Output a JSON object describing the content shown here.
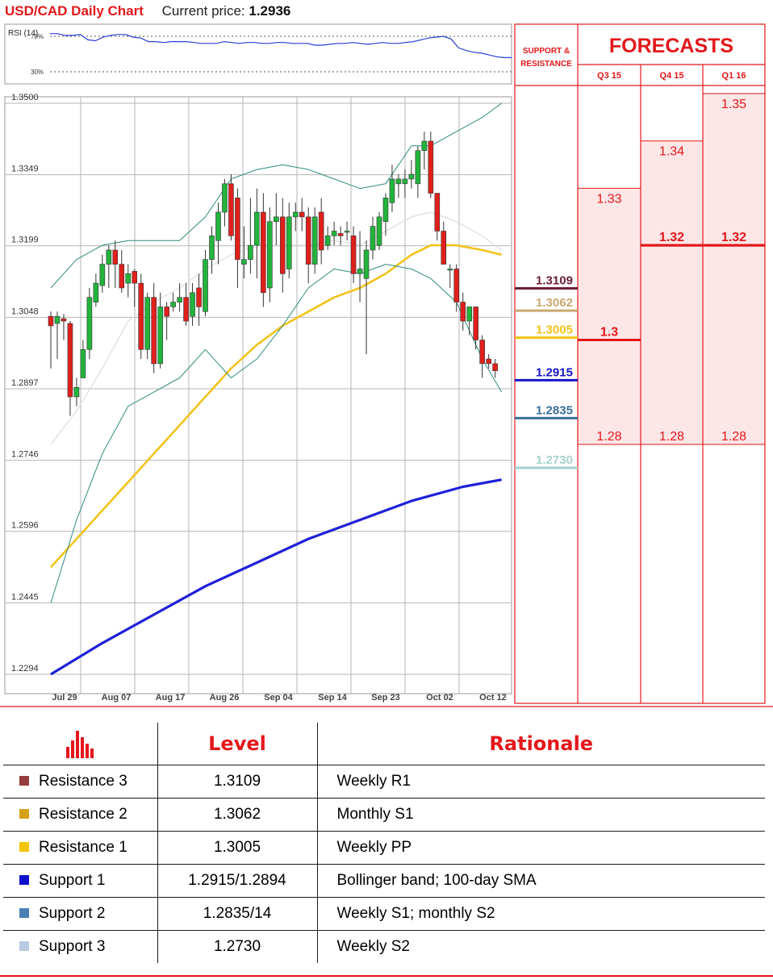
{
  "header": {
    "title": "USD/CAD Daily Chart",
    "current_price_label": "Current price:",
    "current_price": "1.2936"
  },
  "rsi_panel": {
    "label": "RSI (14)",
    "level_70": "70%",
    "level_30": "30%",
    "values": [
      73,
      73,
      71,
      71,
      72,
      66,
      65,
      69,
      71,
      72,
      72,
      69,
      68,
      64,
      64,
      63,
      64,
      64,
      64,
      63,
      62,
      62,
      62,
      64,
      63,
      62,
      63,
      63,
      62,
      62,
      63,
      63,
      62,
      62,
      62,
      60,
      60,
      61,
      62,
      62,
      63,
      62,
      61,
      62,
      63,
      62,
      62,
      63,
      64,
      66,
      68,
      69,
      70,
      67,
      57,
      54,
      52,
      51,
      49,
      47,
      46,
      46
    ],
    "colors": {
      "line": "#2a3fd6",
      "dotted": "#555555"
    }
  },
  "chart_data": {
    "type": "candlestick",
    "title": "USD/CAD Daily Chart",
    "y_ticks": [
      "1.3500",
      "1.3349",
      "1.3199",
      "1.3048",
      "1.2897",
      "1.2746",
      "1.2596",
      "1.2445",
      "1.2294"
    ],
    "x_ticks": [
      "Jul 29",
      "Aug 07",
      "Aug 17",
      "Aug 26",
      "Sep 04",
      "Sep 14",
      "Sep 23",
      "Oct 02",
      "Oct 12"
    ],
    "ylim": [
      1.2294,
      1.35
    ],
    "grid": true,
    "candles": [
      {
        "o": 1.305,
        "h": 1.306,
        "l": 1.294,
        "c": 1.303
      },
      {
        "o": 1.3035,
        "h": 1.306,
        "l": 1.296,
        "c": 1.305
      },
      {
        "o": 1.3045,
        "h": 1.3055,
        "l": 1.3,
        "c": 1.304
      },
      {
        "o": 1.3035,
        "h": 1.304,
        "l": 1.284,
        "c": 1.288
      },
      {
        "o": 1.288,
        "h": 1.292,
        "l": 1.286,
        "c": 1.29
      },
      {
        "o": 1.292,
        "h": 1.3,
        "l": 1.292,
        "c": 1.298
      },
      {
        "o": 1.298,
        "h": 1.311,
        "l": 1.296,
        "c": 1.309
      },
      {
        "o": 1.308,
        "h": 1.314,
        "l": 1.307,
        "c": 1.312
      },
      {
        "o": 1.3115,
        "h": 1.318,
        "l": 1.31,
        "c": 1.316
      },
      {
        "o": 1.316,
        "h": 1.32,
        "l": 1.311,
        "c": 1.319
      },
      {
        "o": 1.319,
        "h": 1.321,
        "l": 1.311,
        "c": 1.316
      },
      {
        "o": 1.316,
        "h": 1.319,
        "l": 1.31,
        "c": 1.311
      },
      {
        "o": 1.312,
        "h": 1.316,
        "l": 1.309,
        "c": 1.314
      },
      {
        "o": 1.3145,
        "h": 1.315,
        "l": 1.307,
        "c": 1.312
      },
      {
        "o": 1.312,
        "h": 1.314,
        "l": 1.296,
        "c": 1.298
      },
      {
        "o": 1.298,
        "h": 1.31,
        "l": 1.296,
        "c": 1.309
      },
      {
        "o": 1.309,
        "h": 1.312,
        "l": 1.293,
        "c": 1.295
      },
      {
        "o": 1.295,
        "h": 1.31,
        "l": 1.294,
        "c": 1.307
      },
      {
        "o": 1.307,
        "h": 1.308,
        "l": 1.3,
        "c": 1.305
      },
      {
        "o": 1.307,
        "h": 1.31,
        "l": 1.306,
        "c": 1.308
      },
      {
        "o": 1.308,
        "h": 1.312,
        "l": 1.306,
        "c": 1.309
      },
      {
        "o": 1.309,
        "h": 1.312,
        "l": 1.303,
        "c": 1.304
      },
      {
        "o": 1.305,
        "h": 1.312,
        "l": 1.303,
        "c": 1.31
      },
      {
        "o": 1.311,
        "h": 1.314,
        "l": 1.303,
        "c": 1.307
      },
      {
        "o": 1.306,
        "h": 1.319,
        "l": 1.305,
        "c": 1.317
      },
      {
        "o": 1.317,
        "h": 1.324,
        "l": 1.314,
        "c": 1.322
      },
      {
        "o": 1.321,
        "h": 1.329,
        "l": 1.316,
        "c": 1.327
      },
      {
        "o": 1.327,
        "h": 1.334,
        "l": 1.324,
        "c": 1.333
      },
      {
        "o": 1.333,
        "h": 1.335,
        "l": 1.321,
        "c": 1.322
      },
      {
        "o": 1.33,
        "h": 1.332,
        "l": 1.311,
        "c": 1.317
      },
      {
        "o": 1.316,
        "h": 1.324,
        "l": 1.313,
        "c": 1.317
      },
      {
        "o": 1.317,
        "h": 1.33,
        "l": 1.314,
        "c": 1.32
      },
      {
        "o": 1.32,
        "h": 1.332,
        "l": 1.313,
        "c": 1.327
      },
      {
        "o": 1.327,
        "h": 1.331,
        "l": 1.307,
        "c": 1.31
      },
      {
        "o": 1.311,
        "h": 1.328,
        "l": 1.308,
        "c": 1.325
      },
      {
        "o": 1.325,
        "h": 1.331,
        "l": 1.32,
        "c": 1.326
      },
      {
        "o": 1.326,
        "h": 1.33,
        "l": 1.31,
        "c": 1.314
      },
      {
        "o": 1.315,
        "h": 1.329,
        "l": 1.313,
        "c": 1.326
      },
      {
        "o": 1.326,
        "h": 1.329,
        "l": 1.323,
        "c": 1.327
      },
      {
        "o": 1.327,
        "h": 1.33,
        "l": 1.323,
        "c": 1.326
      },
      {
        "o": 1.326,
        "h": 1.328,
        "l": 1.312,
        "c": 1.316
      },
      {
        "o": 1.316,
        "h": 1.328,
        "l": 1.314,
        "c": 1.326
      },
      {
        "o": 1.327,
        "h": 1.33,
        "l": 1.316,
        "c": 1.319
      },
      {
        "o": 1.32,
        "h": 1.324,
        "l": 1.319,
        "c": 1.322
      },
      {
        "o": 1.322,
        "h": 1.325,
        "l": 1.32,
        "c": 1.323
      },
      {
        "o": 1.3225,
        "h": 1.324,
        "l": 1.32,
        "c": 1.322
      },
      {
        "o": 1.323,
        "h": 1.325,
        "l": 1.321,
        "c": 1.323
      },
      {
        "o": 1.322,
        "h": 1.324,
        "l": 1.312,
        "c": 1.314
      },
      {
        "o": 1.314,
        "h": 1.323,
        "l": 1.308,
        "c": 1.315
      },
      {
        "o": 1.313,
        "h": 1.321,
        "l": 1.297,
        "c": 1.319
      },
      {
        "o": 1.319,
        "h": 1.326,
        "l": 1.317,
        "c": 1.324
      },
      {
        "o": 1.32,
        "h": 1.327,
        "l": 1.319,
        "c": 1.326
      },
      {
        "o": 1.325,
        "h": 1.331,
        "l": 1.322,
        "c": 1.33
      },
      {
        "o": 1.329,
        "h": 1.337,
        "l": 1.327,
        "c": 1.334
      },
      {
        "o": 1.333,
        "h": 1.335,
        "l": 1.33,
        "c": 1.334
      },
      {
        "o": 1.333,
        "h": 1.336,
        "l": 1.33,
        "c": 1.334
      },
      {
        "o": 1.334,
        "h": 1.338,
        "l": 1.332,
        "c": 1.335
      },
      {
        "o": 1.333,
        "h": 1.341,
        "l": 1.33,
        "c": 1.34
      },
      {
        "o": 1.34,
        "h": 1.344,
        "l": 1.336,
        "c": 1.342
      },
      {
        "o": 1.342,
        "h": 1.344,
        "l": 1.33,
        "c": 1.331
      },
      {
        "o": 1.331,
        "h": 1.331,
        "l": 1.321,
        "c": 1.323
      },
      {
        "o": 1.323,
        "h": 1.325,
        "l": 1.316,
        "c": 1.316
      },
      {
        "o": 1.315,
        "h": 1.316,
        "l": 1.311,
        "c": 1.315
      },
      {
        "o": 1.315,
        "h": 1.316,
        "l": 1.306,
        "c": 1.308
      },
      {
        "o": 1.308,
        "h": 1.31,
        "l": 1.302,
        "c": 1.304
      },
      {
        "o": 1.304,
        "h": 1.307,
        "l": 1.301,
        "c": 1.307
      },
      {
        "o": 1.307,
        "h": 1.307,
        "l": 1.298,
        "c": 1.3
      },
      {
        "o": 1.3,
        "h": 1.301,
        "l": 1.292,
        "c": 1.295
      },
      {
        "o": 1.296,
        "h": 1.297,
        "l": 1.294,
        "c": 1.295
      },
      {
        "o": 1.295,
        "h": 1.296,
        "l": 1.292,
        "c": 1.2935
      }
    ],
    "series": [
      {
        "name": "SMA 50",
        "color": "#f2c31a",
        "values": [
          [
            0,
            1.252
          ],
          [
            4,
            1.258
          ],
          [
            8,
            1.264
          ],
          [
            12,
            1.27
          ],
          [
            16,
            1.276
          ],
          [
            20,
            1.282
          ],
          [
            24,
            1.288
          ],
          [
            28,
            1.294
          ],
          [
            32,
            1.299
          ],
          [
            36,
            1.303
          ],
          [
            40,
            1.306
          ],
          [
            44,
            1.309
          ],
          [
            48,
            1.311
          ],
          [
            52,
            1.314
          ],
          [
            56,
            1.318
          ],
          [
            59,
            1.32
          ],
          [
            63,
            1.32
          ],
          [
            67,
            1.319
          ],
          [
            70,
            1.318
          ]
        ]
      },
      {
        "name": "SMA 100",
        "color": "#2020d8",
        "values": [
          [
            0,
            1.2294
          ],
          [
            8,
            1.236
          ],
          [
            16,
            1.242
          ],
          [
            24,
            1.248
          ],
          [
            32,
            1.253
          ],
          [
            40,
            1.258
          ],
          [
            48,
            1.262
          ],
          [
            56,
            1.266
          ],
          [
            64,
            1.269
          ],
          [
            70,
            1.2705
          ]
        ]
      },
      {
        "name": "SMA 20",
        "color": "#dcdcdc",
        "values": [
          [
            0,
            1.278
          ],
          [
            4,
            1.285
          ],
          [
            8,
            1.294
          ],
          [
            12,
            1.304
          ],
          [
            16,
            1.308
          ],
          [
            20,
            1.311
          ],
          [
            24,
            1.315
          ],
          [
            28,
            1.318
          ],
          [
            32,
            1.32
          ],
          [
            36,
            1.32
          ],
          [
            40,
            1.32
          ],
          [
            44,
            1.321
          ],
          [
            48,
            1.32
          ],
          [
            52,
            1.323
          ],
          [
            56,
            1.326
          ],
          [
            59,
            1.327
          ],
          [
            63,
            1.325
          ],
          [
            67,
            1.322
          ],
          [
            70,
            1.319
          ]
        ]
      },
      {
        "name": "Bollinger Upper",
        "color": "#2e8b7e",
        "values": [
          [
            0,
            1.311
          ],
          [
            4,
            1.317
          ],
          [
            8,
            1.32
          ],
          [
            12,
            1.321
          ],
          [
            16,
            1.321
          ],
          [
            20,
            1.321
          ],
          [
            24,
            1.326
          ],
          [
            28,
            1.334
          ],
          [
            32,
            1.336
          ],
          [
            36,
            1.337
          ],
          [
            40,
            1.336
          ],
          [
            44,
            1.334
          ],
          [
            48,
            1.332
          ],
          [
            52,
            1.333
          ],
          [
            56,
            1.341
          ],
          [
            59,
            1.341
          ],
          [
            63,
            1.344
          ],
          [
            67,
            1.347
          ],
          [
            70,
            1.35
          ]
        ]
      },
      {
        "name": "Bollinger Lower",
        "color": "#2e8b7e",
        "values": [
          [
            0,
            1.2445
          ],
          [
            4,
            1.262
          ],
          [
            8,
            1.276
          ],
          [
            12,
            1.286
          ],
          [
            16,
            1.289
          ],
          [
            20,
            1.292
          ],
          [
            24,
            1.298
          ],
          [
            28,
            1.292
          ],
          [
            32,
            1.296
          ],
          [
            36,
            1.303
          ],
          [
            40,
            1.311
          ],
          [
            44,
            1.315
          ],
          [
            48,
            1.314
          ],
          [
            52,
            1.316
          ],
          [
            56,
            1.315
          ],
          [
            59,
            1.313
          ],
          [
            63,
            1.308
          ],
          [
            67,
            1.296
          ],
          [
            70,
            1.289
          ]
        ]
      }
    ]
  },
  "side_panel": {
    "sr_title_line1": "SUPPORT &",
    "sr_title_line2": "RESISTANCE",
    "forecasts_title": "FORECASTS",
    "quarters": [
      "Q3 15",
      "Q4 15",
      "Q1 16"
    ],
    "levels": [
      {
        "value": "1.3109",
        "price": 1.3109,
        "color": "#6b1e3a"
      },
      {
        "value": "1.3062",
        "price": 1.3062,
        "color": "#c9a870"
      },
      {
        "value": "1.3005",
        "price": 1.3005,
        "color": "#f2c31a"
      },
      {
        "value": "1.2915",
        "price": 1.2915,
        "color": "#1515c8"
      },
      {
        "value": "1.2835",
        "price": 1.2835,
        "color": "#3a7096"
      },
      {
        "value": "1.2730",
        "price": 1.273,
        "color": "#a8d2cc"
      }
    ],
    "forecast_columns": [
      {
        "high": "1.33",
        "high_price": 1.33,
        "mid": "1.3",
        "mid_price": 1.3,
        "low": "1.28",
        "low_price": 1.28
      },
      {
        "high": "1.34",
        "high_price": 1.34,
        "mid": "1.32",
        "mid_price": 1.32,
        "low": "1.28",
        "low_price": 1.28
      },
      {
        "high": "1.35",
        "high_price": 1.35,
        "mid": "1.32",
        "mid_price": 1.32,
        "low": "1.28",
        "low_price": 1.28
      }
    ],
    "colors": {
      "accent": "#e3171b",
      "band_fill": "#fde6e6"
    }
  },
  "levels_table": {
    "headers": {
      "level": "Level",
      "rationale": "Rationale"
    },
    "rows": [
      {
        "name": "Resistance 3",
        "level": "1.3109",
        "rationale": "Weekly R1",
        "color": "#963c3c"
      },
      {
        "name": "Resistance 2",
        "level": "1.3062",
        "rationale": "Monthly S1",
        "color": "#d4a017"
      },
      {
        "name": "Resistance 1",
        "level": "1.3005",
        "rationale": "Weekly PP",
        "color": "#f5c400"
      },
      {
        "name": "Support 1",
        "level": "1.2915/1.2894",
        "rationale": "Bollinger band; 100-day SMA",
        "color": "#1010cc"
      },
      {
        "name": "Support 2",
        "level": "1.2835/14",
        "rationale": "Weekly S1; monthly S2",
        "color": "#4a7fb5"
      },
      {
        "name": "Support 3",
        "level": "1.2730",
        "rationale": "Weekly S2",
        "color": "#b9cbe3"
      }
    ]
  }
}
